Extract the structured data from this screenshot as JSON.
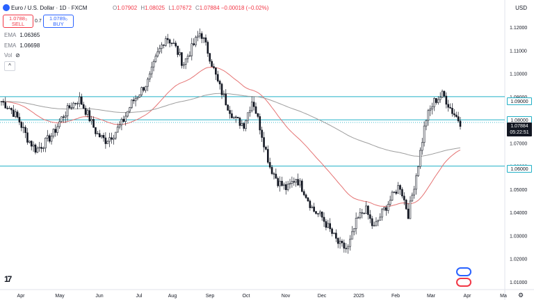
{
  "header": {
    "symbol_title": "Euro / U.S. Dollar · 1D · FXCM",
    "ohlc": [
      {
        "label": "O",
        "value": "1.07902"
      },
      {
        "label": "H",
        "value": "1.08025"
      },
      {
        "label": "L",
        "value": "1.07672"
      },
      {
        "label": "C",
        "value": "1.07884 −0.00018 (−0.02%)"
      }
    ],
    "currency": "USD"
  },
  "trade": {
    "sell_price": "1.0788₃",
    "sell_label": "SELL",
    "spread": "0.7",
    "buy_price": "1.0789₀",
    "buy_label": "BUY"
  },
  "indicators": [
    {
      "name": "EMA",
      "value": "1.06365",
      "color": "#f23645"
    },
    {
      "name": "EMA",
      "value": "1.06698",
      "color": "#787b86"
    }
  ],
  "vol_label": "Vol",
  "collapse_glyph": "^",
  "tv_logo": "17",
  "colors": {
    "up": "#131722",
    "down": "#131722",
    "level": "#21b0c6",
    "ema_fast": "#e57373",
    "ema_slow": "#9e9e9e"
  },
  "chart_data": {
    "type": "candlestick",
    "x_ticks": [
      "Apr",
      "May",
      "Jun",
      "Jul",
      "Aug",
      "Sep",
      "Oct",
      "Nov",
      "Dec",
      "2025",
      "Feb",
      "Mar",
      "Apr",
      "Ma"
    ],
    "y_ticks": [
      "1.12000",
      "1.11000",
      "1.10000",
      "1.09000",
      "1.08000",
      "1.07000",
      "1.06000",
      "1.05000",
      "1.04000",
      "1.03000",
      "1.02000",
      "1.01000"
    ],
    "ylim": [
      1.005,
      1.125
    ],
    "horizontal_levels": [
      {
        "value": 1.09,
        "label": "1.09000"
      },
      {
        "value": 1.08,
        "label": "1.08000"
      },
      {
        "value": 1.06,
        "label": "1.06000"
      }
    ],
    "current_price": {
      "value": 1.07884,
      "label": "1.07884",
      "countdown": "05:22:51"
    },
    "series_anchors": [
      [
        1.088,
        1.085,
        1.08,
        1.072,
        1.067,
        1.07,
        1.074,
        1.081,
        1.086,
        1.089,
        1.082,
        1.074,
        1.071,
        1.074,
        1.079,
        1.087,
        1.092,
        1.097,
        1.108,
        1.116,
        1.112,
        1.104,
        1.111,
        1.118,
        1.108,
        1.096,
        1.087,
        1.08,
        1.078,
        1.089,
        1.075,
        1.06,
        1.053,
        1.05,
        1.055,
        1.049,
        1.041,
        1.038,
        1.032,
        1.026,
        1.024,
        1.036,
        1.042,
        1.033,
        1.04,
        1.046,
        1.052,
        1.039,
        1.058,
        1.08,
        1.088,
        1.091,
        1.084,
        1.079
      ]
    ]
  }
}
